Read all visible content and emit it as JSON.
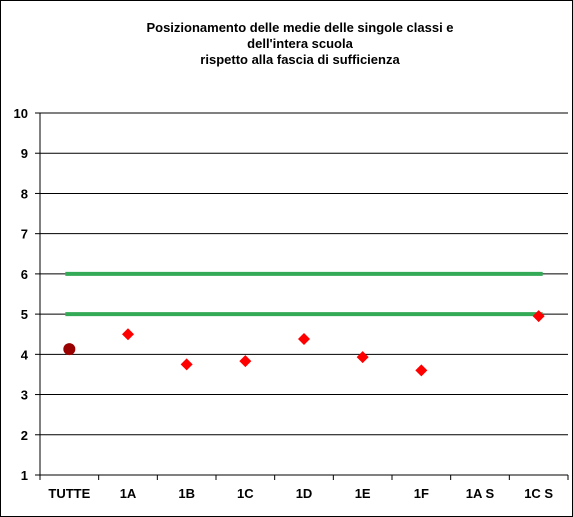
{
  "chart_data": {
    "type": "scatter",
    "title_lines": [
      "Posizionamento delle medie delle singole classi e",
      "dell'intera scuola",
      "rispetto alla fascia di sufficienza"
    ],
    "xlabel": "",
    "ylabel": "",
    "categories": [
      "TUTTE",
      "1A",
      "1B",
      "1C",
      "1D",
      "1E",
      "1F",
      "1A S",
      "1C S"
    ],
    "ylim": [
      1,
      10
    ],
    "yticks": [
      1,
      2,
      3,
      4,
      5,
      6,
      7,
      8,
      9,
      10
    ],
    "grid": "horizontal",
    "series": [
      {
        "values": [
          4.13,
          null,
          null,
          null,
          null,
          null,
          null,
          null,
          null
        ],
        "marker": "circle",
        "color": "#990000"
      },
      {
        "values": [
          null,
          4.5,
          3.75,
          3.83,
          4.38,
          3.93,
          3.6,
          null,
          4.95
        ],
        "marker": "diamond",
        "color": "#ff0000"
      }
    ],
    "reference_lines": [
      {
        "y": 6,
        "color": "#33aa55"
      },
      {
        "y": 5,
        "color": "#33aa55"
      }
    ],
    "colors": {
      "axis": "#000000",
      "grid": "#000000",
      "band": "#33aa55"
    }
  }
}
